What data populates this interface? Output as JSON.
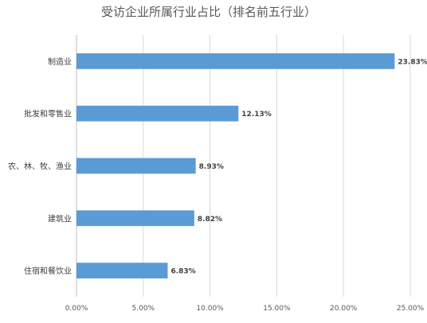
{
  "chart_data": {
    "type": "bar",
    "orientation": "horizontal",
    "title": "受访企业所属行业占比（排名前五行业）",
    "categories": [
      "制造业",
      "批发和零售业",
      "农、林、牧、渔业",
      "建筑业",
      "住宿和餐饮业"
    ],
    "values": [
      23.83,
      12.13,
      8.93,
      8.82,
      6.83
    ],
    "data_labels": [
      "23.83%",
      "12.13%",
      "8.93%",
      "8.82%",
      "6.83%"
    ],
    "xlim": [
      0,
      25
    ],
    "x_ticks": [
      0,
      5,
      10,
      15,
      20,
      25
    ],
    "x_tick_labels": [
      "0.00%",
      "5.00%",
      "10.00%",
      "15.00%",
      "20.00%",
      "25.00%"
    ],
    "xlabel": "",
    "ylabel": "",
    "grid": "vertical",
    "legend": "none",
    "colors": {
      "bar": "#5b9bd5",
      "grid": "#d9d9d9",
      "axis": "#bfbfbf"
    }
  }
}
